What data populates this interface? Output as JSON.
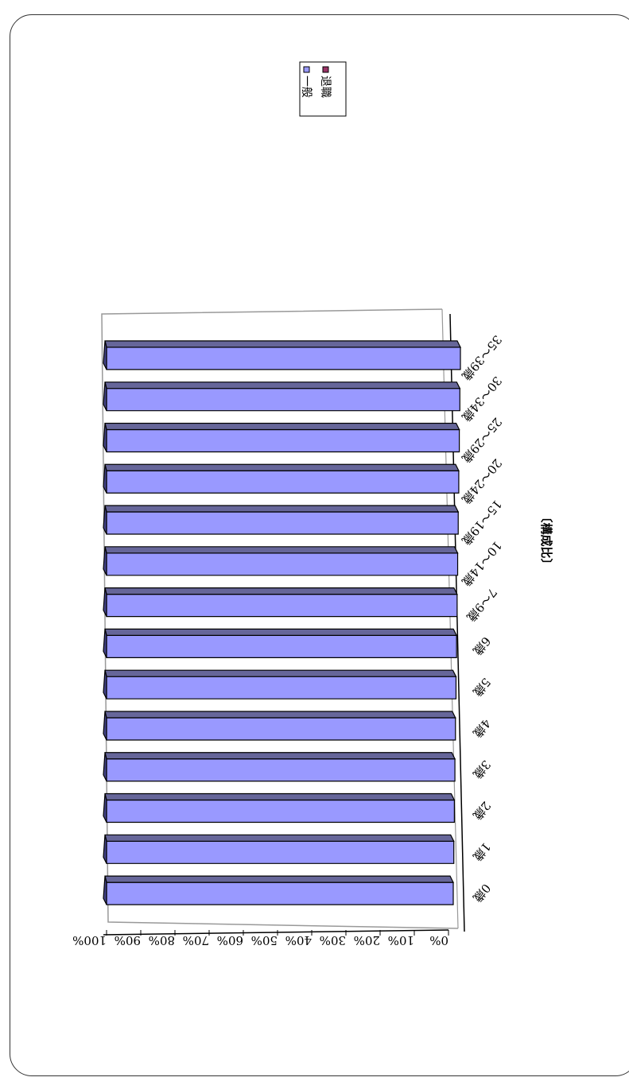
{
  "chart_data": {
    "type": "bar",
    "title": "〔構成比〕",
    "categories": [
      "0歳",
      "1歳",
      "2歳",
      "3歳",
      "4歳",
      "5歳",
      "6歳",
      "7～9歳",
      "10～14歳",
      "15～19歳",
      "20～24歳",
      "25～29歳",
      "30～34歳",
      "35～39歳"
    ],
    "series": [
      {
        "name": "一般",
        "values": [
          100,
          100,
          100,
          100,
          100,
          100,
          100,
          100,
          100,
          100,
          100,
          100,
          100,
          100
        ]
      },
      {
        "name": "退職",
        "values": [
          0,
          0,
          0,
          0,
          0,
          0,
          0,
          0,
          0,
          0,
          0,
          0,
          0,
          0
        ]
      }
    ],
    "ytick_labels": [
      "0%",
      "10%",
      "20%",
      "30%",
      "40%",
      "50%",
      "60%",
      "70%",
      "80%",
      "90%",
      "100%"
    ],
    "ylim": [
      0,
      100
    ],
    "stacked_percent": true,
    "three_d": true,
    "legend_position": "top-right",
    "colors": {
      "series_front": "#9999ff",
      "series_top": "#666699",
      "series_side": "#444488",
      "series2": "#993366",
      "wall_line": "#999999",
      "axis_line": "#000000"
    }
  }
}
